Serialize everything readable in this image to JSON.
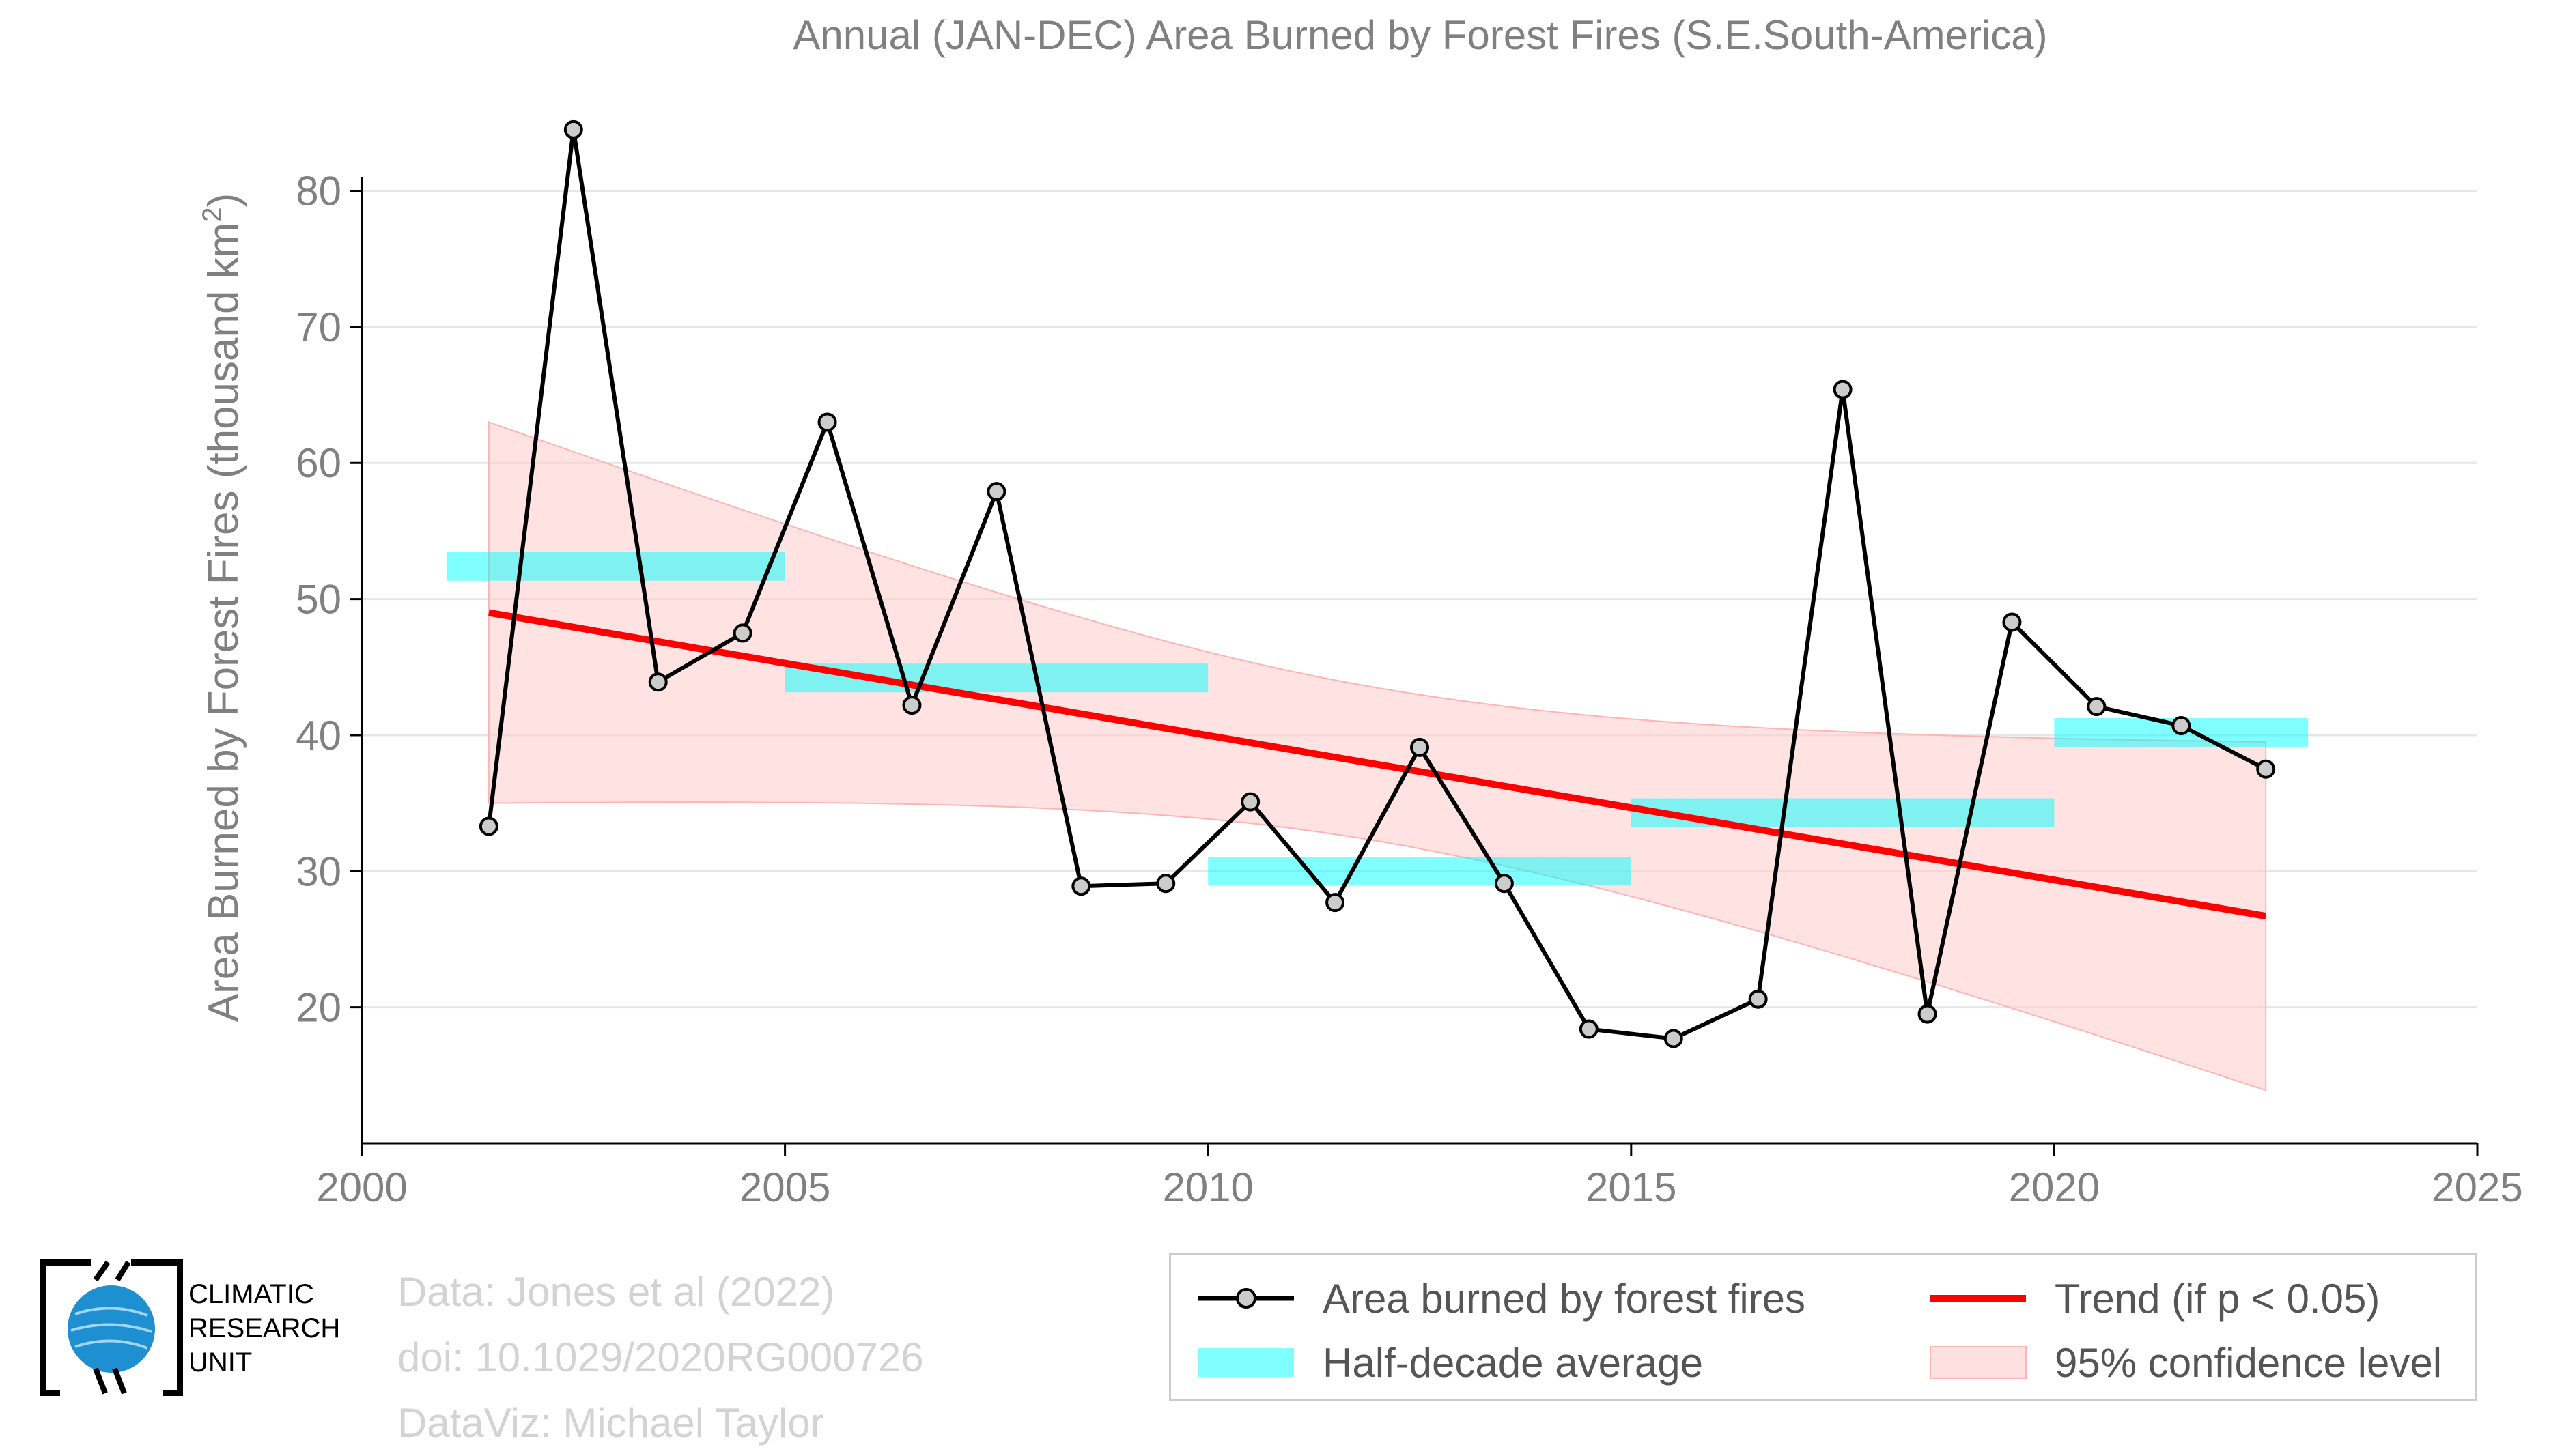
{
  "colors": {
    "line": "#000000",
    "marker_fill": "#cccccc",
    "trend": "#ff0000",
    "half_decade": "#00ffff",
    "confidence": "#ffcccc",
    "grid": "#e6e6e6",
    "axis_text": "#808080",
    "credits_text": "#d3d3d3",
    "logo_globe": "#1e8fd0"
  },
  "chart_data": {
    "type": "line",
    "title": "Annual (JAN-DEC) Area Burned by Forest Fires (S.E.South-America)",
    "ylabel_main": "Area Burned by Forest Fires (thousand km",
    "ylabel_sup": "2",
    "ylabel_end": ")",
    "xlim": [
      2000,
      2025
    ],
    "ylim": [
      10,
      87
    ],
    "xticks": [
      2000,
      2005,
      2010,
      2015,
      2020,
      2025
    ],
    "yticks": [
      20,
      30,
      40,
      50,
      60,
      70,
      80
    ],
    "grid": true,
    "series": [
      {
        "name": "Area burned by forest fires",
        "x": [
          2001.5,
          2002.5,
          2003.5,
          2004.5,
          2005.5,
          2006.5,
          2007.5,
          2008.5,
          2009.5,
          2010.5,
          2011.5,
          2012.5,
          2013.5,
          2014.5,
          2015.5,
          2016.5,
          2017.5,
          2018.5,
          2019.5,
          2020.5,
          2021.5,
          2022.5
        ],
        "values": [
          33.3,
          84.5,
          43.9,
          47.5,
          63.0,
          42.2,
          57.9,
          28.9,
          29.1,
          35.1,
          27.7,
          39.1,
          29.1,
          18.4,
          17.7,
          20.6,
          65.4,
          19.5,
          48.3,
          42.1,
          40.7,
          37.5
        ]
      },
      {
        "name": "Half-decade average",
        "segments": [
          {
            "x0": 2001.0,
            "x1": 2005.0,
            "value": 52.4
          },
          {
            "x0": 2005.0,
            "x1": 2010.0,
            "value": 44.2
          },
          {
            "x0": 2010.0,
            "x1": 2015.0,
            "value": 30.0
          },
          {
            "x0": 2015.0,
            "x1": 2020.0,
            "value": 34.3
          },
          {
            "x0": 2020.0,
            "x1": 2023.0,
            "value": 40.2
          }
        ]
      },
      {
        "name": "Trend (if p < 0.05)",
        "x": [
          2001.5,
          2022.5
        ],
        "values": [
          49.0,
          26.7
        ]
      },
      {
        "name": "95% confidence level",
        "x": [
          2001.5,
          2022.5
        ],
        "upper": [
          63.0,
          39.5
        ],
        "lower": [
          35.0,
          13.7
        ]
      }
    ],
    "legend_position": "bottom-right"
  },
  "credits": {
    "line1": "Data: Jones et al (2022)",
    "line2": "doi: 10.1029/2020RG000726",
    "line3": "DataViz: Michael Taylor"
  },
  "logo": {
    "line1": "CLIMATIC",
    "line2": "RESEARCH",
    "line3": "UNIT"
  },
  "legend": {
    "line_label": "Area burned by forest fires",
    "trend_label": "Trend (if p < 0.05)",
    "halfdecade_label": "Half-decade average",
    "confidence_label": "95% confidence level"
  }
}
